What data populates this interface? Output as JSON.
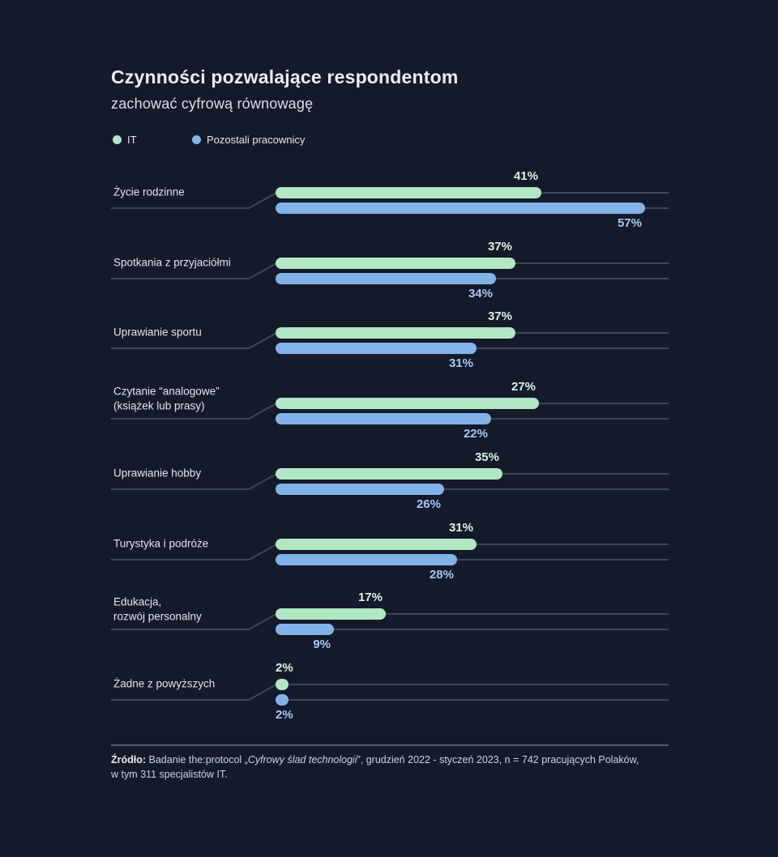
{
  "title": "Czynności pozwalające respondentom",
  "subtitle": "zachować cyfrową równowagę",
  "legend": {
    "items": [
      {
        "label": "IT",
        "color": "#b1e7c3"
      },
      {
        "label": "Pozostali pracownicy",
        "color": "#81b3e9"
      }
    ]
  },
  "colors": {
    "background": "#151a2b",
    "bar_it": "#b1e7c3",
    "bar_rest": "#81b3e9",
    "value_label_it": "#d9f3e3",
    "value_label_rest": "#a6c8f2",
    "grid_line": "#3c4657",
    "separator_line": "#525b6d"
  },
  "chart_data": {
    "type": "bar",
    "orientation": "horizontal",
    "title": "Czynności pozwalające respondentom zachować cyfrową równowagę",
    "unit": "%",
    "xlim": [
      0,
      60
    ],
    "grid": "row guide lines with diagonal connectors, no axis ticks",
    "legend_position": "top-left",
    "categories": [
      "Życie rodzinne",
      "Spotkania z przyjaciółmi",
      "Uprawianie sportu",
      "Czytanie “analogowe” (książek lub prasy)",
      "Uprawianie hobby",
      "Turystyka i podróże",
      "Edukacja, rozwój personalny",
      "Żadne z powyższych"
    ],
    "category_label_lines": [
      [
        "Życie rodzinne"
      ],
      [
        "Spotkania z przyjaciółmi"
      ],
      [
        "Uprawianie sportu"
      ],
      [
        "Czytanie “analogowe”",
        "(książek lub prasy)"
      ],
      [
        "Uprawianie hobby"
      ],
      [
        "Turystyka i podróże"
      ],
      [
        "Edukacja,",
        "rozwój personalny"
      ],
      [
        "Żadne z powyższych"
      ]
    ],
    "series": [
      {
        "name": "IT",
        "color": "#b1e7c3",
        "values": [
          41,
          37,
          37,
          27,
          35,
          31,
          17,
          2
        ],
        "drawn_bar_pct": [
          41,
          37,
          37,
          40.6,
          35,
          31,
          17,
          2
        ]
      },
      {
        "name": "Pozostali pracownicy",
        "color": "#81b3e9",
        "values": [
          57,
          34,
          31,
          22,
          26,
          28,
          9,
          2
        ],
        "drawn_bar_pct": [
          57,
          34,
          31,
          33.2,
          26,
          28,
          9,
          2
        ]
      }
    ],
    "value_label_format": "{value}%"
  },
  "source": {
    "prefix": "Źródło:",
    "t1": " Badanie the:protocol „",
    "italic": "Cyfrowy ślad technologii",
    "t2": "”, grudzień 2022 - styczeń 2023, n = 742 pracujących Polaków,",
    "line2": "w tym 311 specjalistów IT."
  }
}
